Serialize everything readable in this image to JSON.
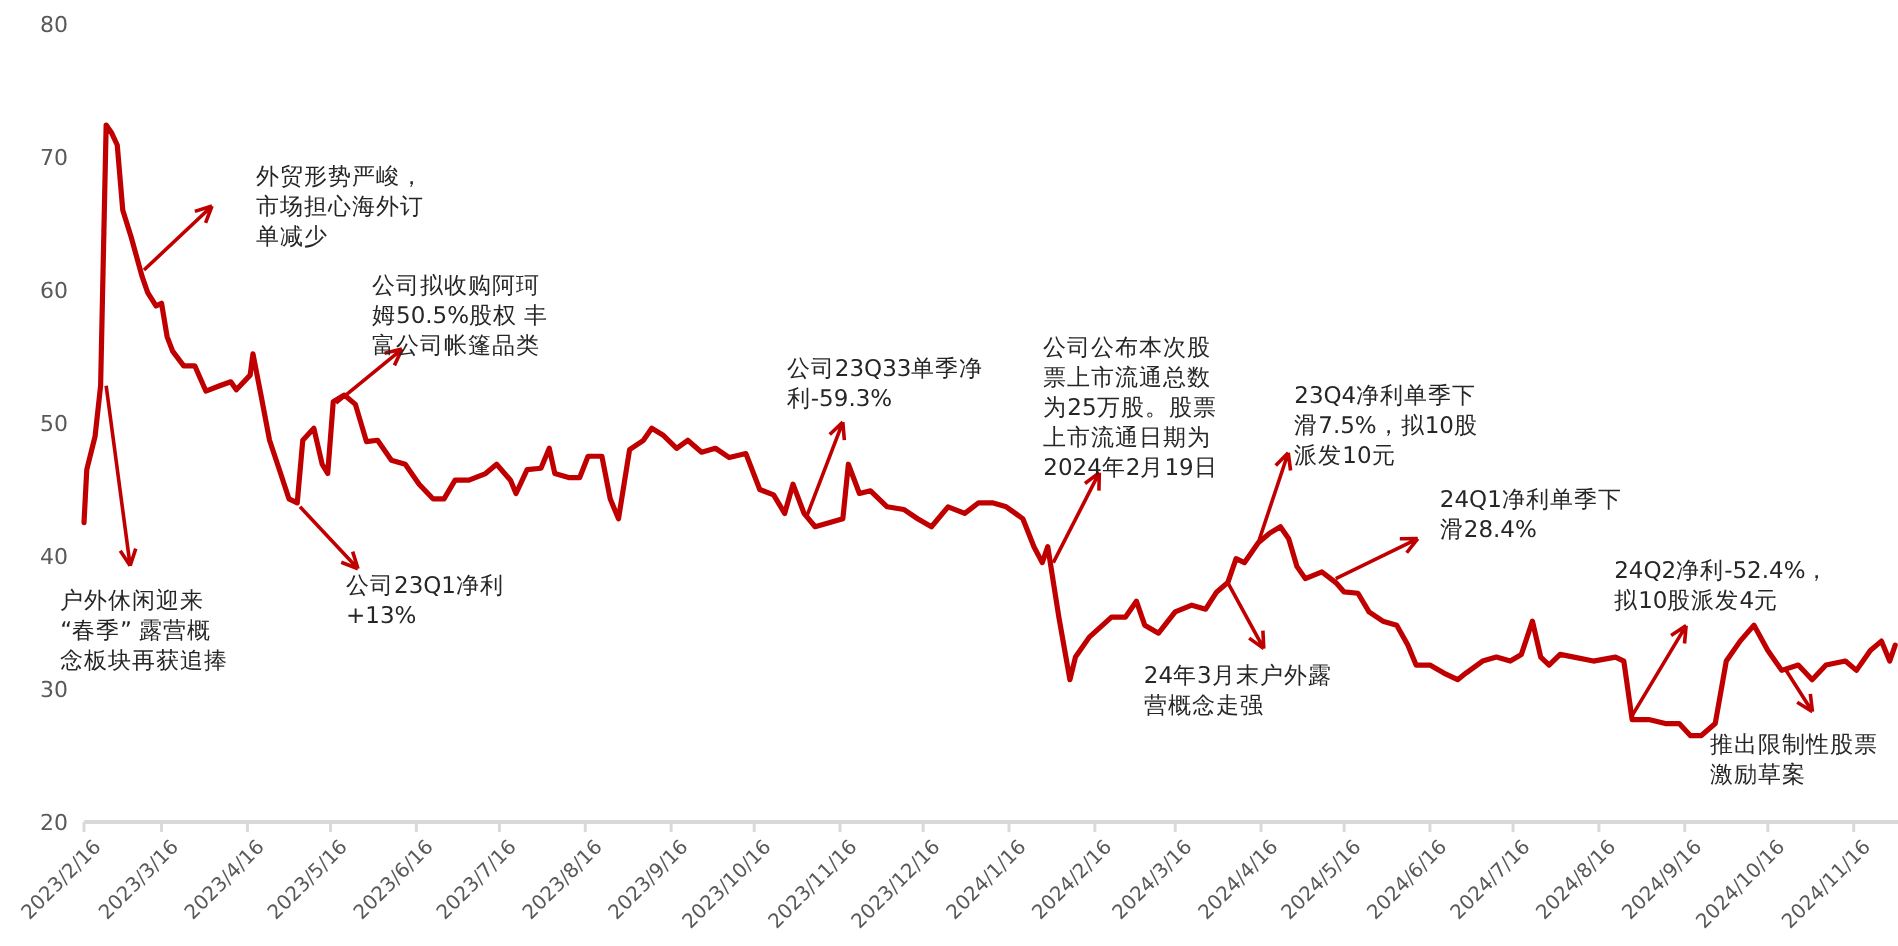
{
  "chart_data": {
    "type": "line",
    "xlim": [
      "2023-02-16",
      "2024-12-02"
    ],
    "ylim": [
      20,
      80
    ],
    "yticks": [
      20,
      30,
      40,
      50,
      60,
      70,
      80
    ],
    "xticks": [
      {
        "value": "2023-02-16",
        "label": "2023/2/16"
      },
      {
        "value": "2023-03-16",
        "label": "2023/3/16"
      },
      {
        "value": "2023-04-16",
        "label": "2023/4/16"
      },
      {
        "value": "2023-05-16",
        "label": "2023/5/16"
      },
      {
        "value": "2023-06-16",
        "label": "2023/6/16"
      },
      {
        "value": "2023-07-16",
        "label": "2023/7/16"
      },
      {
        "value": "2023-08-16",
        "label": "2023/8/16"
      },
      {
        "value": "2023-09-16",
        "label": "2023/9/16"
      },
      {
        "value": "2023-10-16",
        "label": "2023/10/16"
      },
      {
        "value": "2023-11-16",
        "label": "2023/11/16"
      },
      {
        "value": "2023-12-16",
        "label": "2023/12/16"
      },
      {
        "value": "2024-01-16",
        "label": "2024/1/16"
      },
      {
        "value": "2024-02-16",
        "label": "2024/2/16"
      },
      {
        "value": "2024-03-16",
        "label": "2024/3/16"
      },
      {
        "value": "2024-04-16",
        "label": "2024/4/16"
      },
      {
        "value": "2024-05-16",
        "label": "2024/5/16"
      },
      {
        "value": "2024-06-16",
        "label": "2024/6/16"
      },
      {
        "value": "2024-07-16",
        "label": "2024/7/16"
      },
      {
        "value": "2024-08-16",
        "label": "2024/8/16"
      },
      {
        "value": "2024-09-16",
        "label": "2024/9/16"
      },
      {
        "value": "2024-10-16",
        "label": "2024/10/16"
      },
      {
        "value": "2024-11-16",
        "label": "2024/11/16"
      }
    ],
    "grid": false,
    "marker": "none",
    "line_style": "solid",
    "x": [
      "2023-02-16",
      "2023-02-17",
      "2023-02-20",
      "2023-02-22",
      "2023-02-24",
      "2023-02-26",
      "2023-02-28",
      "2023-03-02",
      "2023-03-05",
      "2023-03-09",
      "2023-03-11",
      "2023-03-14",
      "2023-03-16",
      "2023-03-18",
      "2023-03-20",
      "2023-03-24",
      "2023-03-28",
      "2023-04-01",
      "2023-04-06",
      "2023-04-10",
      "2023-04-12",
      "2023-04-17",
      "2023-04-18",
      "2023-04-21",
      "2023-04-24",
      "2023-04-28",
      "2023-05-01",
      "2023-05-04",
      "2023-05-06",
      "2023-05-10",
      "2023-05-13",
      "2023-05-15",
      "2023-05-17",
      "2023-05-21",
      "2023-05-25",
      "2023-05-29",
      "2023-06-02",
      "2023-06-07",
      "2023-06-12",
      "2023-06-17",
      "2023-06-22",
      "2023-06-26",
      "2023-06-30",
      "2023-07-05",
      "2023-07-11",
      "2023-07-15",
      "2023-07-20",
      "2023-07-22",
      "2023-07-26",
      "2023-07-31",
      "2023-08-03",
      "2023-08-05",
      "2023-08-10",
      "2023-08-14",
      "2023-08-17",
      "2023-08-22",
      "2023-08-25",
      "2023-08-28",
      "2023-09-01",
      "2023-09-06",
      "2023-09-09",
      "2023-09-13",
      "2023-09-18",
      "2023-09-22",
      "2023-09-27",
      "2023-10-02",
      "2023-10-07",
      "2023-10-13",
      "2023-10-18",
      "2023-10-23",
      "2023-10-27",
      "2023-10-30",
      "2023-11-03",
      "2023-11-07",
      "2023-11-12",
      "2023-11-17",
      "2023-11-19",
      "2023-11-23",
      "2023-11-27",
      "2023-12-03",
      "2023-12-09",
      "2023-12-14",
      "2023-12-19",
      "2023-12-25",
      "2023-12-31",
      "2024-01-05",
      "2024-01-10",
      "2024-01-15",
      "2024-01-21",
      "2024-01-25",
      "2024-01-28",
      "2024-01-30",
      "2024-02-03",
      "2024-02-07",
      "2024-02-09",
      "2024-02-14",
      "2024-02-22",
      "2024-02-27",
      "2024-03-02",
      "2024-03-05",
      "2024-03-10",
      "2024-03-16",
      "2024-03-22",
      "2024-03-27",
      "2024-03-31",
      "2024-04-04",
      "2024-04-07",
      "2024-04-10",
      "2024-04-15",
      "2024-04-19",
      "2024-04-23",
      "2024-04-26",
      "2024-04-29",
      "2024-05-02",
      "2024-05-08",
      "2024-05-13",
      "2024-05-16",
      "2024-05-21",
      "2024-05-25",
      "2024-05-30",
      "2024-06-04",
      "2024-06-08",
      "2024-06-11",
      "2024-06-16",
      "2024-06-21",
      "2024-06-26",
      "2024-06-29",
      "2024-07-05",
      "2024-07-10",
      "2024-07-15",
      "2024-07-19",
      "2024-07-23",
      "2024-07-26",
      "2024-07-29",
      "2024-08-02",
      "2024-08-07",
      "2024-08-14",
      "2024-08-22",
      "2024-08-25",
      "2024-08-28",
      "2024-09-03",
      "2024-09-09",
      "2024-09-14",
      "2024-09-18",
      "2024-09-22",
      "2024-09-27",
      "2024-10-01",
      "2024-10-06",
      "2024-10-11",
      "2024-10-16",
      "2024-10-21",
      "2024-10-27",
      "2024-11-01",
      "2024-11-06",
      "2024-11-13",
      "2024-11-17",
      "2024-11-22",
      "2024-11-26",
      "2024-11-29",
      "2024-12-01"
    ],
    "series": [
      {
        "color": "#c00000",
        "values": [
          42.5,
          46.5,
          49,
          52.8,
          72.4,
          71.8,
          70.9,
          66,
          64,
          61,
          59.8,
          58.8,
          59,
          56.5,
          55.4,
          54.3,
          54.3,
          52.4,
          52.8,
          53.1,
          52.5,
          53.6,
          55.2,
          52,
          48.7,
          46.2,
          44.3,
          44,
          48.7,
          49.6,
          46.9,
          46.2,
          51.6,
          52.1,
          51.4,
          48.6,
          48.7,
          47.2,
          46.9,
          45.4,
          44.3,
          44.3,
          45.7,
          45.7,
          46.2,
          46.9,
          45.7,
          44.7,
          46.5,
          46.6,
          48.1,
          46.2,
          45.9,
          45.9,
          47.5,
          47.5,
          44.3,
          42.8,
          48,
          48.7,
          49.6,
          49.1,
          48.1,
          48.7,
          47.8,
          48.1,
          47.4,
          47.7,
          45,
          44.6,
          43.2,
          45.4,
          43.2,
          42.2,
          42.5,
          42.8,
          46.9,
          44.7,
          44.9,
          43.7,
          43.5,
          42.8,
          42.2,
          43.7,
          43.2,
          44,
          44,
          43.7,
          42.8,
          40.7,
          39.5,
          40.7,
          35.4,
          30.7,
          32.4,
          33.9,
          35.4,
          35.4,
          36.6,
          34.8,
          34.2,
          35.8,
          36.3,
          36,
          37.3,
          38,
          39.8,
          39.5,
          41,
          41.7,
          42.2,
          41.3,
          39.2,
          38.3,
          38.8,
          38,
          37.3,
          37.2,
          35.8,
          35.1,
          34.8,
          33.3,
          31.8,
          31.8,
          31.2,
          30.7,
          31.2,
          32.1,
          32.4,
          32.1,
          32.6,
          35.1,
          32.4,
          31.8,
          32.6,
          32.4,
          32.1,
          32.4,
          32.1,
          27.7,
          27.7,
          27.4,
          27.4,
          26.5,
          26.5,
          27.4,
          32.1,
          33.6,
          34.8,
          32.9,
          31.4,
          31.8,
          30.7,
          31.8,
          32.1,
          31.4,
          32.9,
          33.6,
          32.1,
          33.3
        ]
      }
    ],
    "annotations": [
      "外贸形势严峻，市场担心海外订单减少",
      {
        "text": "户外休闲迎来“春季” 露营概念板块再获追捧",
        "x": "2023-02-24",
        "y": 52.8
      },
      {
        "text": "公司拟收购阿珂姆50.5%股权 丰富公司帐篷品类",
        "x": "2023-05-18",
        "y": 51.5
      },
      {
        "text": "公司23Q1净利+13%",
        "x": "2023-05-05",
        "y": 43.7
      },
      {
        "text": "公司23Q33单季净利-59.3%",
        "x": "2023-11-04",
        "y": 43
      },
      {
        "text": "公司公布本次股票上市流通总数为25万股。股票上市流通日期为2024年2月19日",
        "x": "2024-02-01",
        "y": 39.5
      },
      {
        "text": "24年3月末户外露营概念走强",
        "x": "2024-04-04",
        "y": 38
      },
      {
        "text": "23Q4净利单季下滑7.5%，拟10股派发10元",
        "x": "2024-04-15",
        "y": 41
      },
      {
        "text": "24Q1净利单季下滑28.4%",
        "x": "2024-05-13",
        "y": 38.3
      },
      {
        "text": "24Q2净利-52.4%，拟10股派发4元",
        "x": "2024-08-28",
        "y": 28
      },
      {
        "text": "推出限制性股票激励草案",
        "x": "2024-10-22",
        "y": 31.6
      }
    ]
  }
}
